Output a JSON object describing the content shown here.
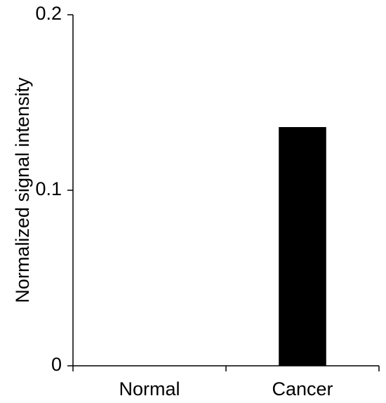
{
  "chart_data": {
    "type": "bar",
    "categories": [
      "Normal",
      "Cancer"
    ],
    "values": [
      0,
      0.136
    ],
    "ylabel": "Normalized signal intensity",
    "xlabel": "",
    "ylim": [
      0,
      0.2
    ],
    "yticks": [
      0,
      0.1,
      0.2
    ],
    "ytick_labels": [
      "0",
      "0.1",
      "0.2"
    ],
    "bar_color": "#000000",
    "grid": false
  }
}
